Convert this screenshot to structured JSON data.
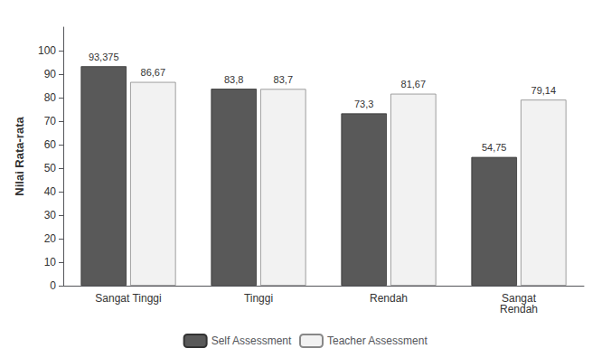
{
  "chart_data": {
    "type": "bar",
    "categories": [
      "Sangat Tinggi",
      "Tinggi",
      "Rendah",
      "Sangat\nRendah"
    ],
    "series": [
      {
        "name": "Self Assessment",
        "color": "#595959",
        "values": [
          93.375,
          83.8,
          73.3,
          54.75
        ],
        "value_labels": [
          "93,375",
          "83,8",
          "73,3",
          "54,75"
        ]
      },
      {
        "name": "Teacher Assessment",
        "color": "#f2f2f2",
        "values": [
          86.67,
          83.7,
          81.67,
          79.14
        ],
        "value_labels": [
          "86,67",
          "83,7",
          "81,67",
          "79,14"
        ]
      }
    ],
    "ylabel": "Nilai Rata-rata",
    "ylim": [
      0,
      110
    ],
    "yticks": [
      0,
      10,
      20,
      30,
      40,
      50,
      60,
      70,
      80,
      90,
      100
    ],
    "grid": false,
    "legend": "bottom",
    "data_labels": true
  }
}
